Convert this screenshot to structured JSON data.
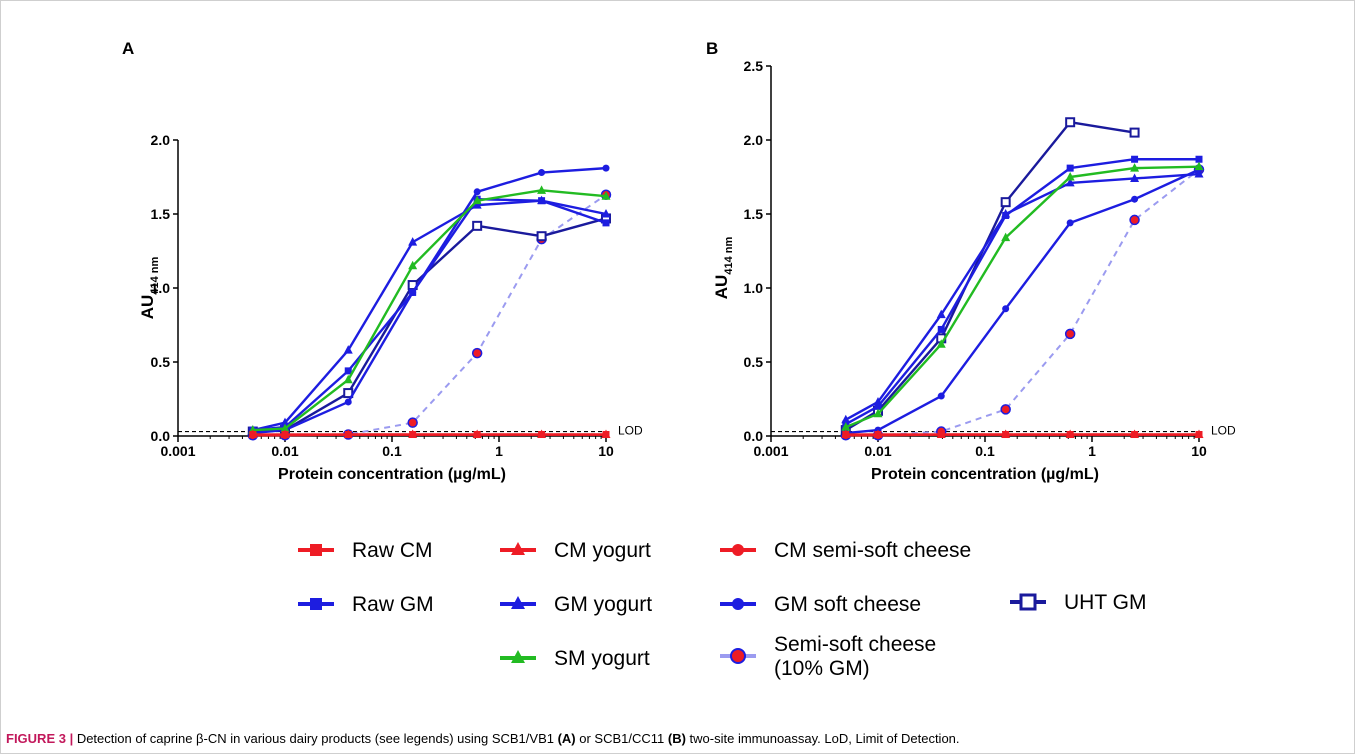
{
  "colors": {
    "red": "#ee1c25",
    "blue": "#1d1de0",
    "green": "#22bb22",
    "navy": "#1a1a9c",
    "dashed": "#9b9bf0"
  },
  "chart_data": [
    {
      "type": "line",
      "panel_label": "A",
      "xlabel": "Protein concentration (µg/mL)",
      "ylabel_main": "AU",
      "ylabel_sub": "414 nm",
      "xscale": "log",
      "xlim": [
        0.001,
        10
      ],
      "ylim": [
        0,
        2.0
      ],
      "yticks": [
        "0.0",
        "0.5",
        "1.0",
        "1.5",
        "2.0"
      ],
      "xticks": [
        "0.001",
        "0.01",
        "0.1",
        "1",
        "10"
      ],
      "lod": {
        "label": "LOD",
        "value": 0.03
      },
      "series": [
        {
          "name": "Raw CM",
          "marker": "square",
          "x": [
            0.005,
            0.01,
            0.039,
            0.156,
            0.625,
            2.5,
            10
          ],
          "y": [
            0.01,
            0.01,
            0.01,
            0.01,
            0.01,
            0.01,
            0.01
          ]
        },
        {
          "name": "CM yogurt",
          "marker": "triangle",
          "x": [
            0.005,
            0.01,
            0.039,
            0.156,
            0.625,
            2.5,
            10
          ],
          "y": [
            0.01,
            0.01,
            0.01,
            0.01,
            0.01,
            0.01,
            0.01
          ]
        },
        {
          "name": "CM semi-soft cheese",
          "marker": "circle",
          "x": [
            0.005,
            0.01,
            0.039,
            0.156,
            0.625,
            2.5,
            10
          ],
          "y": [
            0.005,
            0.005,
            0.01,
            0.01,
            0.01,
            0.01,
            0.01
          ]
        },
        {
          "name": "Raw GM",
          "marker": "square",
          "x": [
            0.005,
            0.01,
            0.039,
            0.156,
            0.625,
            2.5,
            10
          ],
          "y": [
            0.04,
            0.06,
            0.44,
            0.97,
            1.6,
            1.59,
            1.44
          ]
        },
        {
          "name": "GM yogurt",
          "marker": "triangle",
          "x": [
            0.005,
            0.01,
            0.039,
            0.156,
            0.625,
            2.5,
            10
          ],
          "y": [
            0.04,
            0.09,
            0.58,
            1.31,
            1.56,
            1.59,
            1.5
          ]
        },
        {
          "name": "GM soft cheese",
          "marker": "circle",
          "x": [
            0.005,
            0.01,
            0.039,
            0.156,
            0.625,
            2.5,
            10
          ],
          "y": [
            0.02,
            0.04,
            0.23,
            0.97,
            1.65,
            1.78,
            1.81
          ]
        },
        {
          "name": "SM yogurt",
          "marker": "triangle",
          "x": [
            0.005,
            0.01,
            0.039,
            0.156,
            0.625,
            2.5,
            10
          ],
          "y": [
            0.04,
            0.05,
            0.38,
            1.15,
            1.59,
            1.66,
            1.62
          ]
        },
        {
          "name": "UHT GM",
          "marker": "open-square",
          "x": [
            0.005,
            0.01,
            0.039,
            0.156,
            0.625,
            2.5,
            10
          ],
          "y": [
            0.03,
            0.04,
            0.29,
            1.02,
            1.42,
            1.35,
            1.47
          ]
        },
        {
          "name": "Semi-soft cheese (10% GM)",
          "marker": "red-circle",
          "dashed": true,
          "x": [
            0.005,
            0.01,
            0.039,
            0.156,
            0.625,
            2.5,
            10
          ],
          "y": [
            0.005,
            0.005,
            0.01,
            0.09,
            0.56,
            1.33,
            1.63
          ]
        }
      ]
    },
    {
      "type": "line",
      "panel_label": "B",
      "xlabel": "Protein concentration (µg/mL)",
      "ylabel_main": "AU",
      "ylabel_sub": "414 nm",
      "xscale": "log",
      "xlim": [
        0.001,
        10
      ],
      "ylim": [
        0,
        2.5
      ],
      "yticks": [
        "0.0",
        "0.5",
        "1.0",
        "1.5",
        "2.0",
        "2.5"
      ],
      "xticks": [
        "0.001",
        "0.01",
        "0.1",
        "1",
        "10"
      ],
      "lod": {
        "label": "LOD",
        "value": 0.03
      },
      "series": [
        {
          "name": "Raw CM",
          "marker": "square",
          "x": [
            0.005,
            0.01,
            0.039,
            0.156,
            0.625,
            2.5,
            10
          ],
          "y": [
            0.01,
            0.01,
            0.01,
            0.01,
            0.01,
            0.01,
            0.01
          ]
        },
        {
          "name": "CM yogurt",
          "marker": "triangle",
          "x": [
            0.005,
            0.01,
            0.039,
            0.156,
            0.625,
            2.5,
            10
          ],
          "y": [
            0.01,
            0.01,
            0.01,
            0.01,
            0.01,
            0.01,
            0.01
          ]
        },
        {
          "name": "CM semi-soft cheese",
          "marker": "circle",
          "x": [
            0.005,
            0.01,
            0.039,
            0.156,
            0.625,
            2.5,
            10
          ],
          "y": [
            0.005,
            0.005,
            0.01,
            0.01,
            0.01,
            0.01,
            0.01
          ]
        },
        {
          "name": "Raw GM",
          "marker": "square",
          "x": [
            0.005,
            0.01,
            0.039,
            0.156,
            0.625,
            2.5,
            10
          ],
          "y": [
            0.08,
            0.2,
            0.72,
            1.49,
            1.81,
            1.87,
            1.87
          ]
        },
        {
          "name": "GM yogurt",
          "marker": "triangle",
          "x": [
            0.005,
            0.01,
            0.039,
            0.156,
            0.625,
            2.5,
            10
          ],
          "y": [
            0.11,
            0.23,
            0.82,
            1.5,
            1.71,
            1.74,
            1.77
          ]
        },
        {
          "name": "GM soft cheese",
          "marker": "circle",
          "x": [
            0.005,
            0.01,
            0.039,
            0.156,
            0.625,
            2.5,
            10
          ],
          "y": [
            0.02,
            0.04,
            0.27,
            0.86,
            1.44,
            1.6,
            1.8
          ]
        },
        {
          "name": "SM yogurt",
          "marker": "triangle",
          "x": [
            0.005,
            0.01,
            0.039,
            0.156,
            0.625,
            2.5,
            10
          ],
          "y": [
            0.06,
            0.15,
            0.62,
            1.34,
            1.75,
            1.81,
            1.82
          ]
        },
        {
          "name": "UHT GM",
          "marker": "open-square",
          "x": [
            0.005,
            0.01,
            0.039,
            0.156,
            0.625,
            2.5
          ],
          "y": [
            0.04,
            0.17,
            0.66,
            1.58,
            2.12,
            2.05
          ]
        },
        {
          "name": "Semi-soft cheese (10% GM)",
          "marker": "red-circle",
          "dashed": true,
          "x": [
            0.005,
            0.01,
            0.039,
            0.156,
            0.625,
            2.5,
            10
          ],
          "y": [
            0.005,
            0.005,
            0.03,
            0.18,
            0.69,
            1.46,
            1.8
          ]
        }
      ]
    }
  ],
  "legend": {
    "raw_cm": "Raw CM",
    "cm_yogurt": "CM yogurt",
    "cm_cheese": "CM semi-soft cheese",
    "raw_gm": "Raw GM",
    "gm_yogurt": "GM yogurt",
    "gm_cheese": "GM soft cheese",
    "uht_gm": "UHT GM",
    "sm_yogurt": "SM yogurt",
    "semi_soft_10": "Semi-soft cheese\n(10% GM)"
  },
  "caption": {
    "figure": "FIGURE 3 |",
    "text1": " Detection of caprine β-CN in various dairy products (see legends) using SCB1/VB1 ",
    "a": "(A)",
    "text2": " or SCB1/CC11 ",
    "b": "(B)",
    "text3": " two-site immunoassay. LoD, Limit of Detection."
  }
}
